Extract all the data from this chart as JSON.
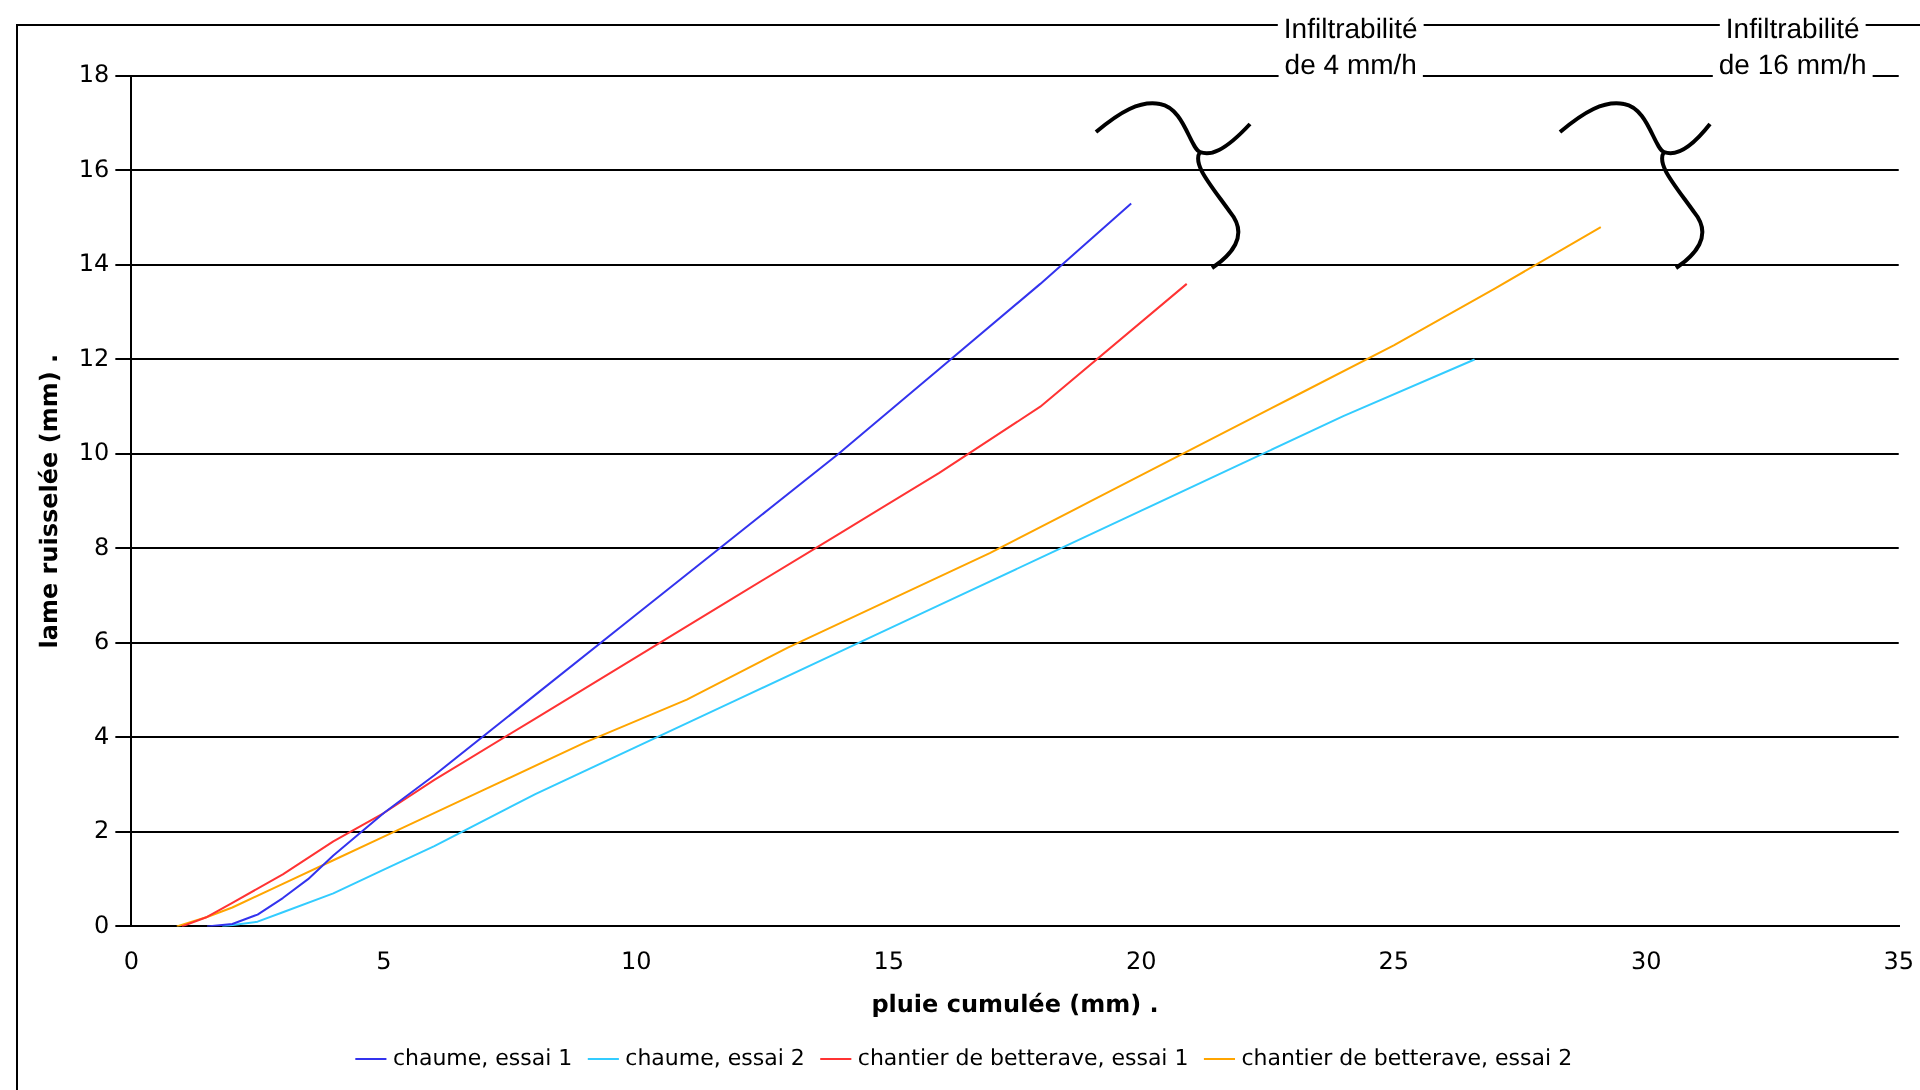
{
  "chart_data": {
    "type": "line",
    "xlabel": "pluie cumulée (mm) .",
    "ylabel": "lame ruisselée (mm) .",
    "xlim": [
      0,
      35
    ],
    "xticks": [
      0,
      5,
      10,
      15,
      20,
      25,
      30,
      35
    ],
    "ylim": [
      0,
      18
    ],
    "yticks": [
      0,
      2,
      4,
      6,
      8,
      10,
      12,
      14,
      16,
      18
    ],
    "grid": "y",
    "legend": "bottom",
    "marker": "none",
    "line_style": "solid",
    "series": [
      {
        "name": "chaume, essai 1",
        "color": "#3333ee",
        "x": [
          1.5,
          2,
          2.5,
          3,
          3.5,
          4,
          4.5,
          5,
          6,
          8,
          10,
          12,
          14,
          16,
          18,
          19.8
        ],
        "values": [
          0,
          0.05,
          0.25,
          0.6,
          1,
          1.5,
          1.95,
          2.4,
          3.2,
          4.9,
          6.6,
          8.3,
          10,
          11.8,
          13.6,
          15.3
        ]
      },
      {
        "name": "chaume, essai 2",
        "color": "#33ccff",
        "x": [
          1.8,
          2.5,
          3,
          4,
          5,
          6,
          8,
          10,
          12,
          14,
          16,
          18,
          20,
          22,
          24,
          26.6
        ],
        "values": [
          0,
          0.1,
          0.3,
          0.7,
          1.2,
          1.7,
          2.8,
          3.8,
          4.8,
          5.8,
          6.8,
          7.8,
          8.8,
          9.8,
          10.8,
          12
        ]
      },
      {
        "name": "chantier de betterave, essai 1",
        "color": "#ff3333",
        "x": [
          1,
          1.5,
          2,
          3,
          4,
          5,
          6,
          8,
          10,
          12,
          14,
          16,
          18,
          20.9
        ],
        "values": [
          0,
          0.2,
          0.5,
          1.1,
          1.8,
          2.4,
          3.1,
          4.4,
          5.7,
          7,
          8.3,
          9.6,
          11,
          13.6
        ]
      },
      {
        "name": "chantier de betterave, essai 2",
        "color": "#ffa500",
        "x": [
          0.9,
          1.5,
          2,
          3,
          4,
          5,
          7,
          9,
          11,
          13,
          15,
          17,
          19,
          21,
          23,
          25,
          27,
          29.1
        ],
        "values": [
          0,
          0.2,
          0.4,
          0.9,
          1.4,
          1.9,
          2.9,
          3.9,
          4.8,
          5.9,
          6.9,
          7.9,
          9,
          10.1,
          11.2,
          12.3,
          13.5,
          14.8
        ]
      }
    ],
    "annotations": [
      "Infiltrabilité de 4 mm/h",
      "Infiltrabilité de 16 mm/h"
    ]
  }
}
